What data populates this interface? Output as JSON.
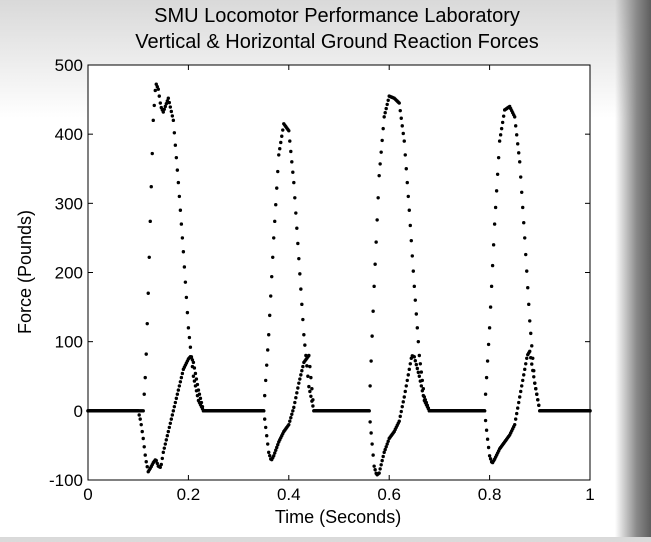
{
  "chart_data": {
    "type": "scatter",
    "title_lines": [
      "SMU Locomotor Performance Laboratory",
      "Vertical & Horizontal Ground Reaction Forces"
    ],
    "xlabel": "Time (Seconds)",
    "ylabel": "Force (Pounds)",
    "xlim": [
      0,
      1
    ],
    "ylim": [
      -100,
      500
    ],
    "xticks": [
      0,
      0.2,
      0.4,
      0.6,
      0.8,
      1
    ],
    "xtick_labels": [
      "0",
      "0.2",
      "0.4",
      "0.6",
      "0.8",
      "1"
    ],
    "yticks": [
      -100,
      0,
      100,
      200,
      300,
      400,
      500
    ],
    "ytick_labels": [
      "-100",
      "0",
      "100",
      "200",
      "300",
      "400",
      "500"
    ],
    "grid": false,
    "marker_color": "#000000",
    "series": [
      {
        "x": [
          0.0,
          0.1,
          0.11,
          0.115,
          0.12,
          0.125,
          0.13,
          0.135,
          0.14,
          0.145,
          0.15,
          0.16,
          0.17,
          0.18,
          0.19,
          0.2,
          0.21,
          0.22,
          0.23,
          0.35,
          0.36,
          0.37,
          0.38,
          0.39,
          0.4,
          0.41,
          0.42,
          0.43,
          0.44,
          0.45,
          0.56,
          0.57,
          0.58,
          0.59,
          0.6,
          0.61,
          0.62,
          0.63,
          0.64,
          0.65,
          0.66,
          0.67,
          0.68,
          0.79,
          0.8,
          0.81,
          0.82,
          0.83,
          0.84,
          0.85,
          0.86,
          0.87,
          0.88,
          0.89,
          0.9,
          1.0
        ],
        "y": [
          0,
          0,
          0,
          60,
          170,
          300,
          420,
          474,
          465,
          440,
          432,
          452,
          420,
          330,
          230,
          120,
          50,
          15,
          0,
          0,
          110,
          250,
          370,
          415,
          405,
          330,
          220,
          110,
          35,
          0,
          0,
          180,
          340,
          425,
          455,
          452,
          445,
          390,
          290,
          180,
          80,
          20,
          0,
          0,
          120,
          270,
          390,
          435,
          440,
          425,
          360,
          250,
          130,
          40,
          0,
          0
        ]
      },
      {
        "x": [
          0.0,
          0.1,
          0.105,
          0.11,
          0.115,
          0.12,
          0.125,
          0.13,
          0.135,
          0.14,
          0.145,
          0.15,
          0.16,
          0.17,
          0.18,
          0.19,
          0.2,
          0.205,
          0.21,
          0.22,
          0.23,
          0.35,
          0.355,
          0.36,
          0.365,
          0.37,
          0.38,
          0.39,
          0.4,
          0.41,
          0.42,
          0.43,
          0.44,
          0.45,
          0.56,
          0.565,
          0.57,
          0.575,
          0.58,
          0.59,
          0.6,
          0.61,
          0.62,
          0.63,
          0.64,
          0.645,
          0.65,
          0.66,
          0.67,
          0.68,
          0.79,
          0.795,
          0.8,
          0.805,
          0.81,
          0.82,
          0.83,
          0.84,
          0.85,
          0.86,
          0.87,
          0.875,
          0.88,
          0.89,
          0.9,
          1.0
        ],
        "y": [
          0,
          0,
          -15,
          -40,
          -70,
          -88,
          -82,
          -75,
          -70,
          -80,
          -82,
          -60,
          -30,
          0,
          30,
          60,
          75,
          79,
          70,
          30,
          0,
          0,
          -30,
          -60,
          -72,
          -65,
          -45,
          -30,
          -20,
          5,
          40,
          70,
          80,
          0,
          0,
          -40,
          -80,
          -93,
          -90,
          -60,
          -40,
          -30,
          -15,
          20,
          60,
          80,
          78,
          50,
          15,
          0,
          0,
          -35,
          -65,
          -76,
          -70,
          -55,
          -45,
          -35,
          -20,
          20,
          60,
          80,
          86,
          40,
          0,
          0
        ]
      }
    ]
  }
}
